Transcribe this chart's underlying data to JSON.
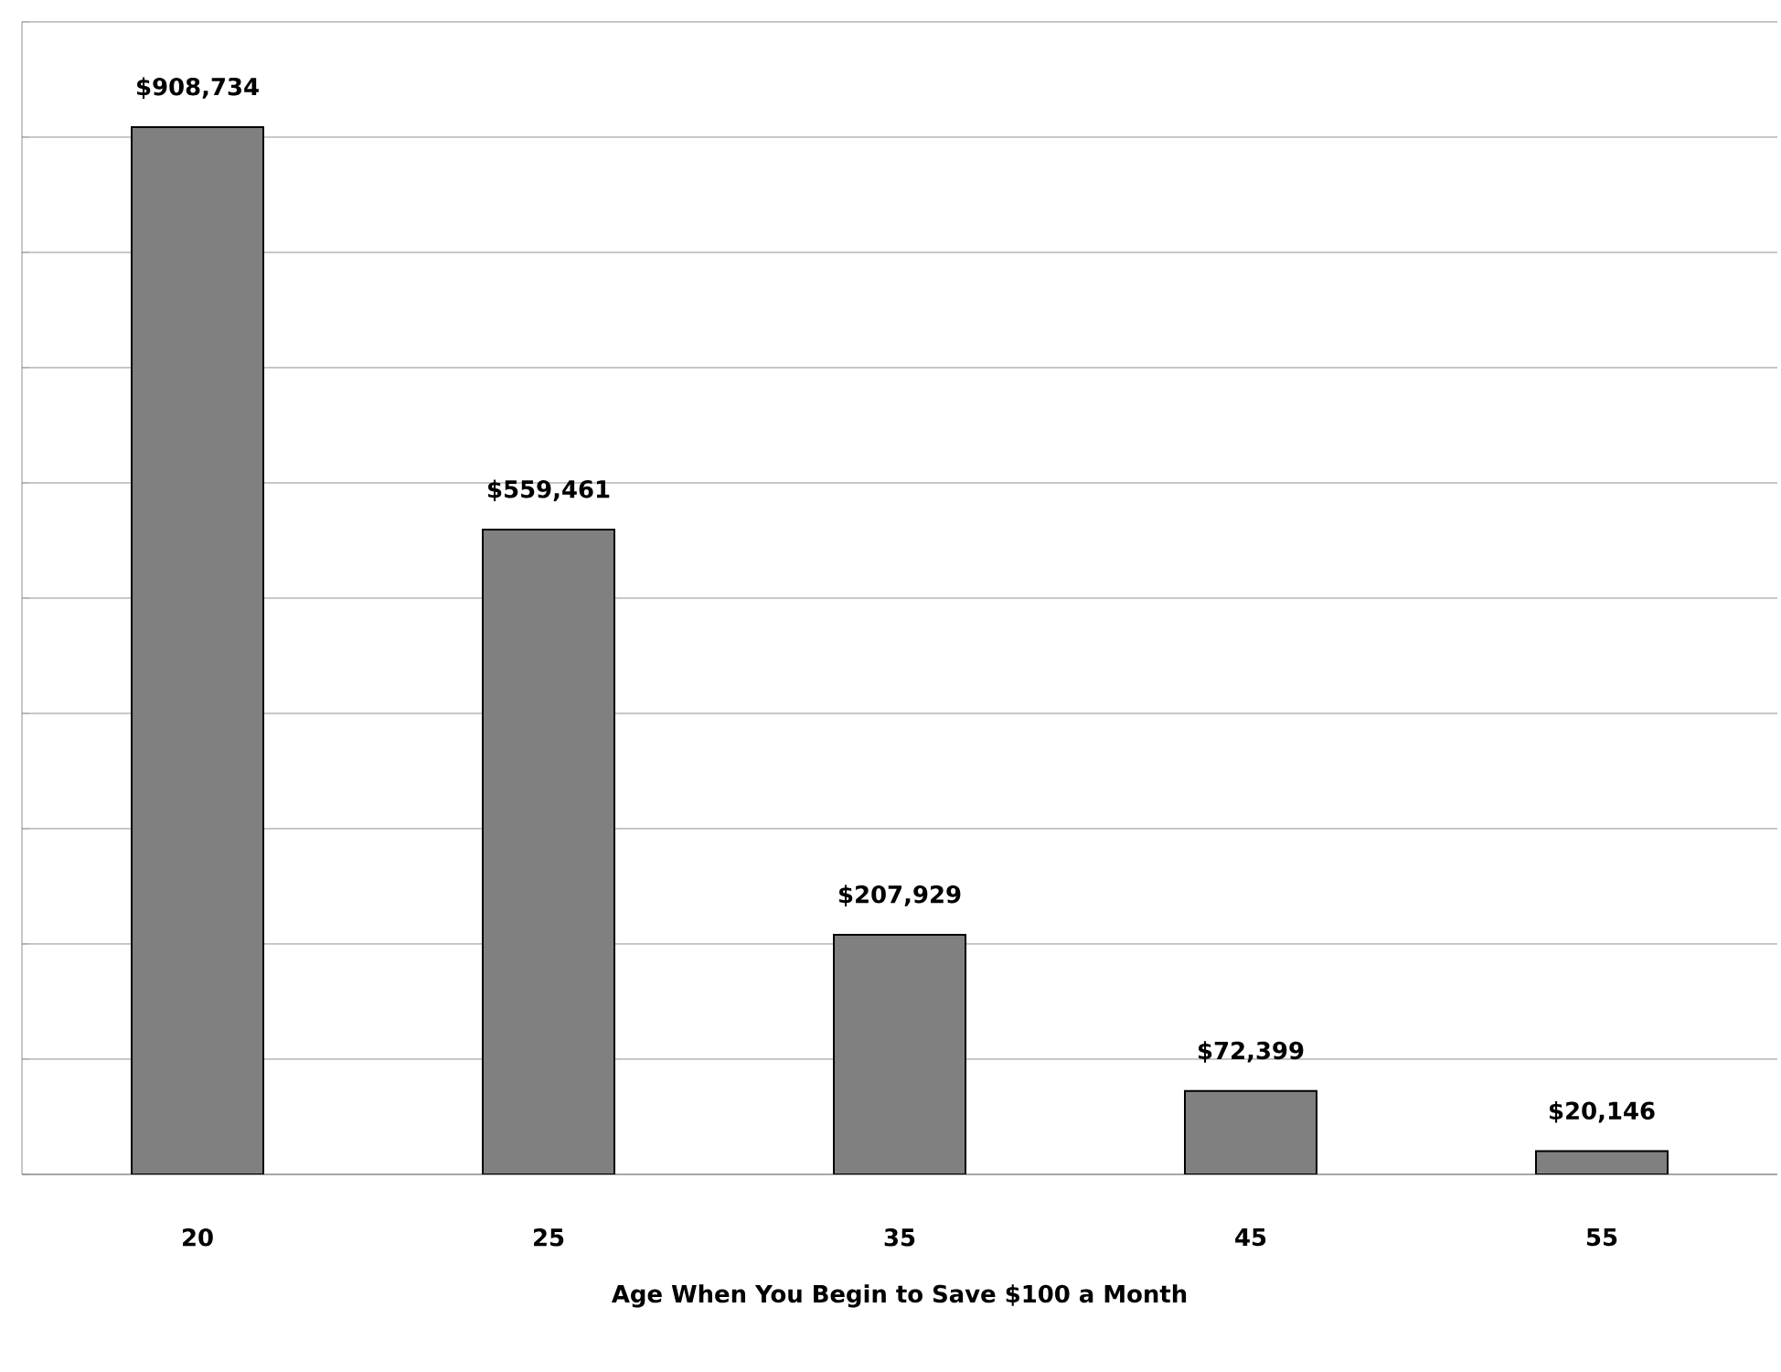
{
  "chart_data": {
    "type": "bar",
    "xlabel": "Age When You Begin to Save $100 a Month",
    "categories": [
      "20",
      "25",
      "35",
      "45",
      "55"
    ],
    "values": [
      908734,
      559461,
      207929,
      72399,
      20146
    ],
    "value_labels": [
      "$908,734",
      "$559,461",
      "$207,929",
      "$72,399",
      "$20,146"
    ],
    "color": "#808080",
    "ylim": [
      0,
      1000000
    ],
    "yticks": [
      {
        "value": 0,
        "label": null
      },
      {
        "value": 100000,
        "label": null
      },
      {
        "value": 200000,
        "label": null
      },
      {
        "value": 300000,
        "label": null
      },
      {
        "value": 400000,
        "label": null
      },
      {
        "value": 500000,
        "label": null
      },
      {
        "value": 600000,
        "label": null
      },
      {
        "value": 700000,
        "label": null
      },
      {
        "value": 800000,
        "label": null
      },
      {
        "value": 900000,
        "label": null
      },
      {
        "value": 1000000,
        "label": null
      }
    ],
    "tick_labels": "x",
    "grid": "y"
  }
}
